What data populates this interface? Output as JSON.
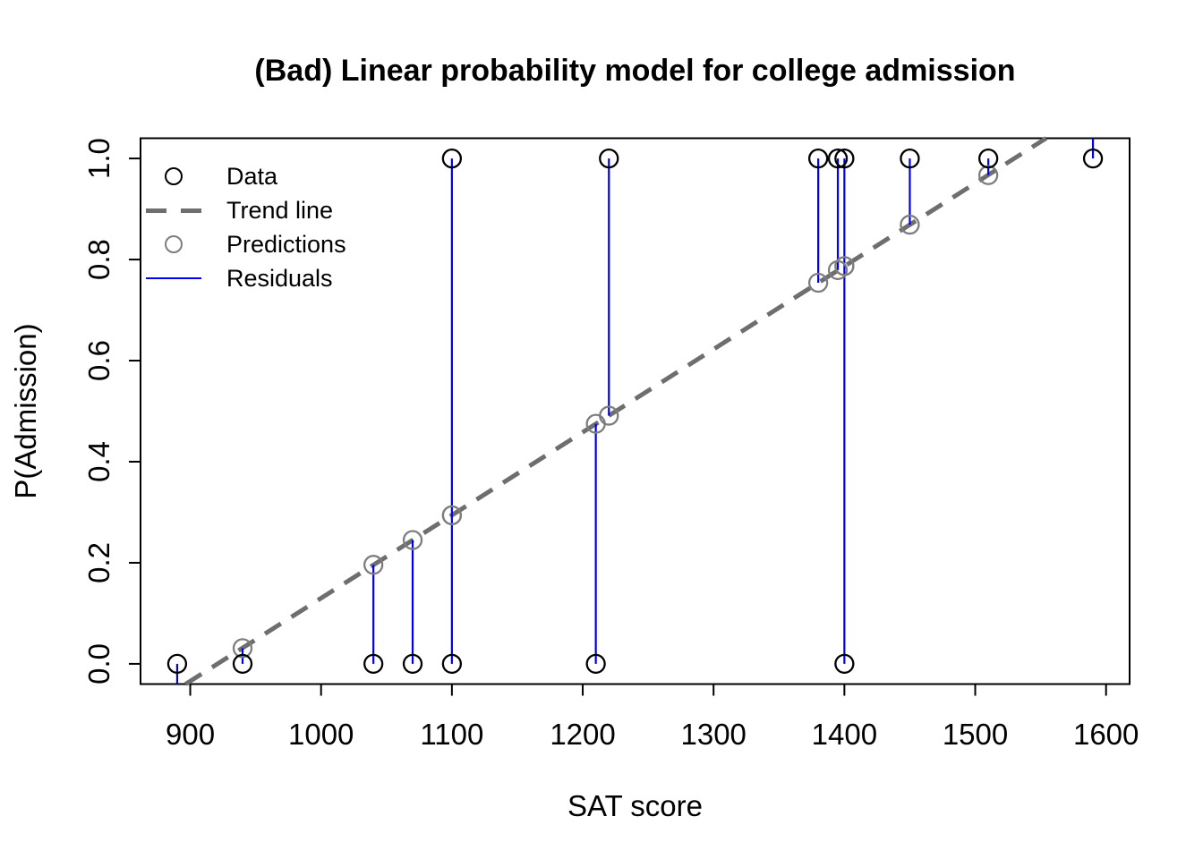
{
  "title": "(Bad) Linear probability model for college admission",
  "axes": {
    "x_label": "SAT score",
    "y_label": "P(Admission)"
  },
  "legend": {
    "items": [
      {
        "label": "Data",
        "type": "open-circle",
        "color_key": "data"
      },
      {
        "label": "Trend line",
        "type": "dashed-line",
        "color_key": "trend"
      },
      {
        "label": "Predictions",
        "type": "open-circle",
        "color_key": "predictions"
      },
      {
        "label": "Residuals",
        "type": "solid-line",
        "color_key": "residuals"
      }
    ]
  },
  "colors": {
    "data": "#000000",
    "trend": "#6e6e6e",
    "predictions": "#7d7d7d",
    "residuals": "#0000ee"
  },
  "chart_data": {
    "type": "scatter",
    "title": "(Bad) Linear probability model for college admission",
    "xlabel": "SAT score",
    "ylabel": "P(Admission)",
    "xlim": [
      862,
      1618
    ],
    "ylim": [
      -0.04,
      1.04
    ],
    "x_ticks": [
      900,
      1000,
      1100,
      1200,
      1300,
      1400,
      1500,
      1600
    ],
    "y_ticks": [
      "0.0",
      "0.2",
      "0.4",
      "0.6",
      "0.8",
      "1.0"
    ],
    "grid": false,
    "legend_position": "top-left",
    "trend_line": {
      "intercept": -1.512,
      "slope": 0.001642,
      "style": "dashed"
    },
    "points": [
      {
        "sat": 890,
        "admitted": 0,
        "predicted": -0.051
      },
      {
        "sat": 940,
        "admitted": 0,
        "predicted": 0.031
      },
      {
        "sat": 1040,
        "admitted": 0,
        "predicted": 0.196
      },
      {
        "sat": 1070,
        "admitted": 0,
        "predicted": 0.245
      },
      {
        "sat": 1100,
        "admitted": 0,
        "predicted": 0.294
      },
      {
        "sat": 1100,
        "admitted": 1,
        "predicted": 0.294
      },
      {
        "sat": 1210,
        "admitted": 0,
        "predicted": 0.475
      },
      {
        "sat": 1220,
        "admitted": 1,
        "predicted": 0.491
      },
      {
        "sat": 1380,
        "admitted": 1,
        "predicted": 0.754
      },
      {
        "sat": 1395,
        "admitted": 1,
        "predicted": 0.779
      },
      {
        "sat": 1400,
        "admitted": 0,
        "predicted": 0.787
      },
      {
        "sat": 1400,
        "admitted": 1,
        "predicted": 0.787
      },
      {
        "sat": 1450,
        "admitted": 1,
        "predicted": 0.869
      },
      {
        "sat": 1510,
        "admitted": 1,
        "predicted": 0.967
      },
      {
        "sat": 1590,
        "admitted": 1,
        "predicted": 1.099
      }
    ]
  }
}
